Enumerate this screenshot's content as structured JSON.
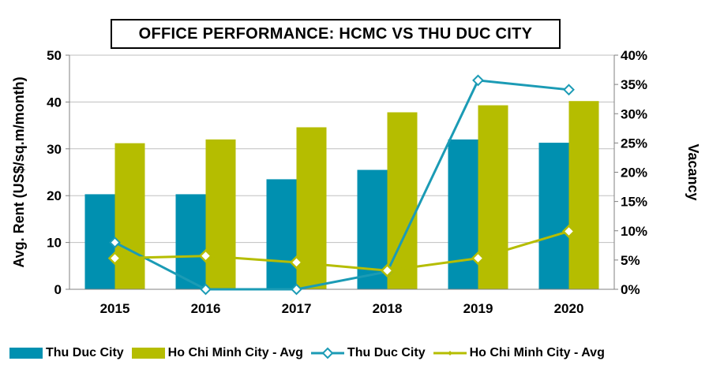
{
  "chart_data": {
    "type": "bar",
    "title": "OFFICE PERFORMANCE:  HCMC VS THU DUC CITY",
    "categories": [
      "2015",
      "2016",
      "2017",
      "2018",
      "2019",
      "2020"
    ],
    "ylabel": "Avg. Rent (US$/sq.m/month)",
    "y2label": "Vacancy",
    "ylim": [
      0,
      50
    ],
    "yticks": [
      "0",
      "10",
      "20",
      "30",
      "40",
      "50"
    ],
    "y2lim": [
      0,
      40
    ],
    "y2ticks": [
      "0%",
      "5%",
      "10%",
      "15%",
      "20%",
      "25%",
      "30%",
      "35%",
      "40%"
    ],
    "grid": true,
    "legend_position": "bottom",
    "series": [
      {
        "name": "Thu Duc City",
        "kind": "bar",
        "axis": "left",
        "color": "#0090b0",
        "values": [
          20.3,
          20.3,
          23.5,
          25.5,
          32.0,
          31.3
        ]
      },
      {
        "name": "Ho Chi Minh City - Avg",
        "kind": "bar",
        "axis": "left",
        "color": "#b5bd00",
        "values": [
          31.2,
          32.0,
          34.6,
          37.8,
          39.3,
          40.2
        ]
      },
      {
        "name": "Thu Duc City",
        "kind": "line",
        "axis": "right",
        "color": "#1b9bb5",
        "values": [
          8.0,
          0.0,
          0.0,
          3.0,
          35.7,
          34.1
        ]
      },
      {
        "name": "Ho Chi Minh City - Avg",
        "kind": "line",
        "axis": "right",
        "color": "#b5bd00",
        "values": [
          5.3,
          5.7,
          4.6,
          3.2,
          5.3,
          9.9
        ]
      }
    ]
  }
}
